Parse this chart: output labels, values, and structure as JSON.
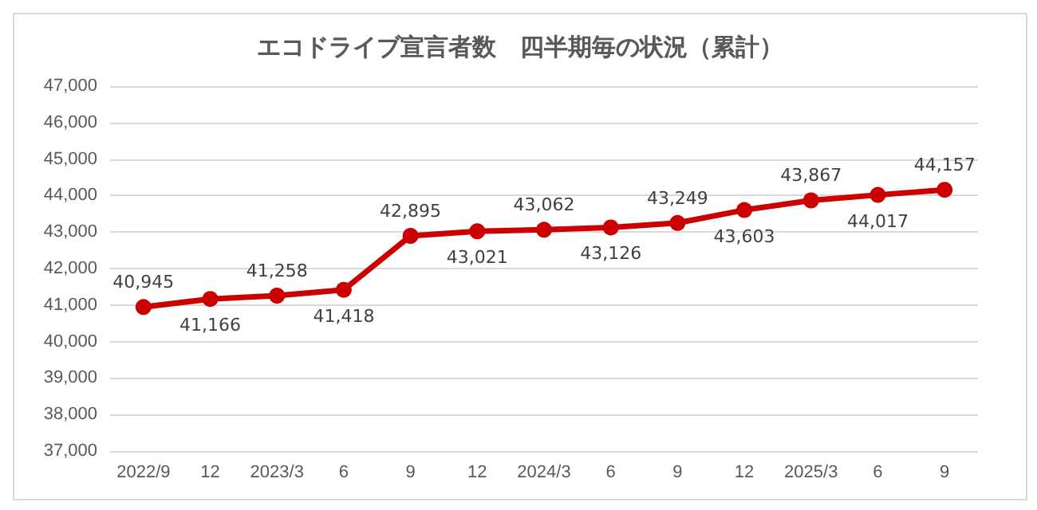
{
  "chart_data": {
    "type": "line",
    "title": "エコドライブ宣言者数　四半期毎の状況（累計）",
    "categories": [
      "2022/9",
      "12",
      "2023/3",
      "6",
      "9",
      "12",
      "2024/3",
      "6",
      "9",
      "12",
      "2025/3",
      "6",
      "9"
    ],
    "series": [
      {
        "color": "#cc0000",
        "values": [
          40945,
          41166,
          41258,
          41418,
          42895,
          43021,
          43062,
          43126,
          43249,
          43603,
          43867,
          44017,
          44157
        ],
        "value_labels": [
          "40,945",
          "41,166",
          "41,258",
          "41,418",
          "42,895",
          "43,021",
          "43,062",
          "43,126",
          "43,249",
          "43,603",
          "43,867",
          "44,017",
          "44,157"
        ]
      }
    ],
    "ylim": [
      37000,
      47000
    ],
    "yticks": [
      {
        "value": 37000,
        "label": "37,000"
      },
      {
        "value": 38000,
        "label": "38,000"
      },
      {
        "value": 39000,
        "label": "39,000"
      },
      {
        "value": 40000,
        "label": "40,000"
      },
      {
        "value": 41000,
        "label": "41,000"
      },
      {
        "value": 42000,
        "label": "42,000"
      },
      {
        "value": 43000,
        "label": "43,000"
      },
      {
        "value": 44000,
        "label": "44,000"
      },
      {
        "value": 45000,
        "label": "45,000"
      },
      {
        "value": 46000,
        "label": "46,000"
      },
      {
        "value": 47000,
        "label": "47,000"
      }
    ],
    "grid": "y",
    "marker": "circle",
    "line_style": "solid"
  }
}
